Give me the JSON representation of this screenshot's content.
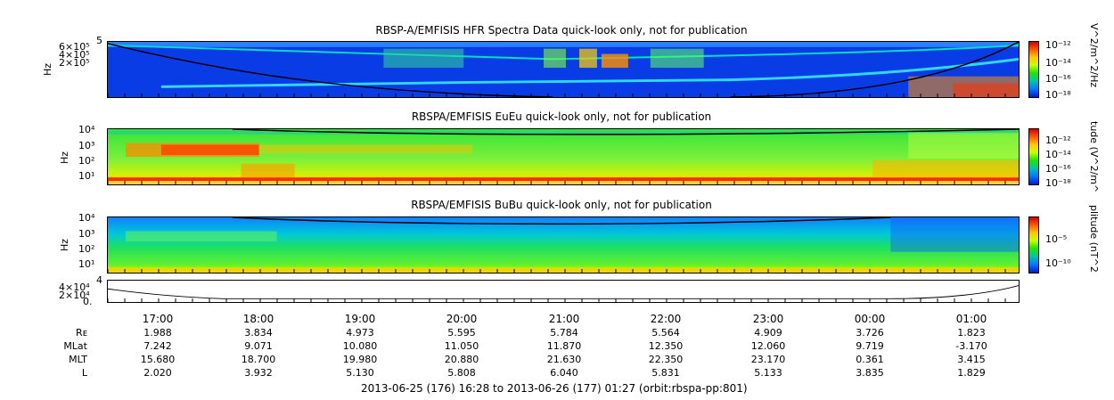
{
  "panels": [
    {
      "title": "RBSP-A/EMFISIS  HFR Spectra Data quick-look only, not for publication",
      "ylabel": "Hz",
      "yticks": [
        "5",
        "6×10⁵",
        "4×10⁵",
        "2×10⁵"
      ],
      "cbar_label": "V^2/m^2/Hz",
      "cbar_ticks": [
        "10⁻¹²",
        "10⁻¹⁴",
        "10⁻¹⁶",
        "10⁻¹⁸"
      ]
    },
    {
      "title": "RBSPA/EMFISIS  EuEu quick-look only, not for publication",
      "ylabel": "Hz",
      "yticks": [
        "10⁴",
        "10³",
        "10²",
        "10¹"
      ],
      "cbar_label": "tude (V^2/m^",
      "cbar_ticks": [
        "10⁻¹²",
        "10⁻¹⁴",
        "10⁻¹⁶",
        "10⁻¹⁸"
      ]
    },
    {
      "title": "RBSPA/EMFISIS  BuBu quick-look only, not for publication",
      "ylabel": "Hz",
      "yticks": [
        "10⁴",
        "10³",
        "10²",
        "10¹"
      ],
      "cbar_label": "plitude (nT^2",
      "cbar_ticks": [
        "10⁻⁵",
        "10⁻¹⁰"
      ]
    }
  ],
  "line_panel": {
    "yticks": [
      "4",
      "4×10⁴",
      "2×10⁴",
      "0."
    ]
  },
  "time_labels": [
    "17:00",
    "18:00",
    "19:00",
    "20:00",
    "21:00",
    "22:00",
    "23:00",
    "00:00",
    "01:00"
  ],
  "ephemeris": [
    {
      "label": "Rᴇ",
      "values": [
        "1.988",
        "3.834",
        "4.973",
        "5.595",
        "5.784",
        "5.564",
        "4.909",
        "3.726",
        "1.823"
      ]
    },
    {
      "label": "MLat",
      "values": [
        "7.242",
        "9.071",
        "10.080",
        "11.050",
        "11.870",
        "12.350",
        "12.060",
        "9.719",
        "-3.170"
      ]
    },
    {
      "label": "MLT",
      "values": [
        "15.680",
        "18.700",
        "19.980",
        "20.880",
        "21.630",
        "22.350",
        "23.170",
        "0.361",
        "3.415"
      ]
    },
    {
      "label": "L",
      "values": [
        "2.020",
        "3.932",
        "5.130",
        "5.808",
        "6.040",
        "5.831",
        "5.133",
        "3.835",
        "1.829"
      ]
    }
  ],
  "footer": "2013-06-25 (176) 16:28 to 2013-06-26 (177) 01:27 (orbit:rbspa-pp:801)",
  "chart_data": {
    "type": "heatmap",
    "x_range": [
      "2013-06-25 16:28",
      "2013-06-26 01:27"
    ],
    "x_ticks": [
      "17:00",
      "18:00",
      "19:00",
      "20:00",
      "21:00",
      "22:00",
      "23:00",
      "00:00",
      "01:00"
    ],
    "colors": {
      "high": "#d10000",
      "mid": "#23e400",
      "low": "#0018d8"
    }
  }
}
